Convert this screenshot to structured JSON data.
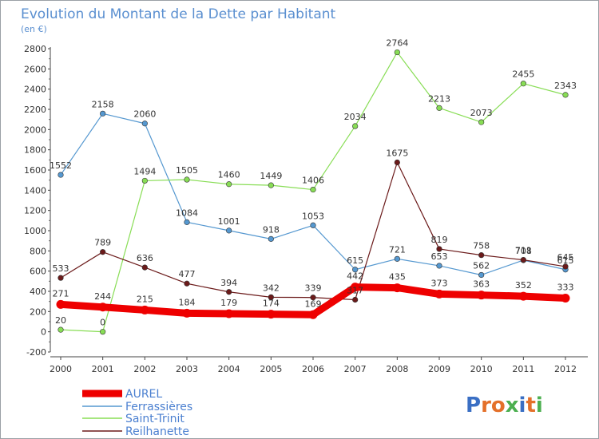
{
  "chart_data": {
    "type": "line",
    "title": "Evolution du Montant de la Dette par Habitant",
    "subtitle": "(en €)",
    "x": [
      2000,
      2001,
      2002,
      2003,
      2004,
      2005,
      2006,
      2007,
      2008,
      2009,
      2010,
      2011,
      2012
    ],
    "ylim": [
      -200,
      2800
    ],
    "yticks": [
      -200,
      0,
      200,
      400,
      600,
      800,
      1000,
      1200,
      1400,
      1600,
      1800,
      2000,
      2200,
      2400,
      2600,
      2800
    ],
    "grid": false,
    "legend": "bottom-left",
    "series": [
      {
        "name": "AUREL",
        "color": "#ee0000",
        "values": [
          271,
          244,
          215,
          184,
          179,
          174,
          169,
          442,
          435,
          373,
          363,
          352,
          333
        ]
      },
      {
        "name": "Ferrassières",
        "color": "#5598d0",
        "values": [
          1552,
          2158,
          2060,
          1084,
          1001,
          918,
          1053,
          615,
          721,
          653,
          562,
          708,
          615
        ]
      },
      {
        "name": "Saint-Trinit",
        "color": "#88dd55",
        "values": [
          20,
          0,
          1494,
          1505,
          1460,
          1449,
          1406,
          2034,
          2764,
          2213,
          2073,
          2455,
          2343
        ]
      },
      {
        "name": "Reilhanette",
        "color": "#6b1a1a",
        "values": [
          533,
          789,
          636,
          477,
          394,
          342,
          339,
          317,
          1675,
          819,
          758,
          711,
          645
        ]
      }
    ]
  },
  "watermark": {
    "text": "Proxiti"
  }
}
